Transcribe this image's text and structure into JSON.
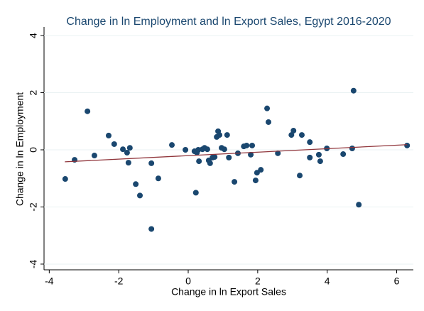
{
  "chart_data": {
    "type": "scatter",
    "title": "Change in ln Employment and ln Export Sales, Egypt 2016-2020",
    "x_label": "Change in ln Export Sales",
    "y_label": "Change in ln Employment",
    "xlim": [
      -4.15,
      6.48
    ],
    "ylim": [
      -4.2,
      4.3
    ],
    "xticks": [
      -4,
      -2,
      0,
      2,
      4,
      6
    ],
    "yticks": [
      -4,
      -2,
      0,
      2,
      4
    ],
    "grid": true,
    "series": [
      {
        "color": "#1a476f",
        "x": [
          -3.54,
          -3.27,
          -2.9,
          -2.7,
          -2.29,
          -2.13,
          -1.88,
          -1.76,
          -1.68,
          -1.72,
          -1.51,
          -1.39,
          -1.06,
          -1.06,
          -0.86,
          -0.47,
          -0.08,
          0.18,
          0.25,
          0.29,
          0.22,
          0.31,
          0.41,
          0.47,
          0.55,
          0.59,
          0.63,
          0.7,
          0.76,
          0.82,
          0.86,
          0.9,
          0.96,
          1.04,
          1.12,
          1.17,
          1.33,
          1.43,
          1.6,
          1.68,
          1.8,
          1.84,
          1.94,
          1.98,
          2.09,
          2.27,
          2.31,
          2.58,
          2.97,
          3.03,
          3.21,
          3.27,
          3.5,
          3.5,
          3.76,
          3.8,
          3.99,
          4.46,
          4.72,
          4.76,
          4.91,
          6.3
        ],
        "values": [
          -1.02,
          -0.35,
          1.35,
          -0.2,
          0.5,
          0.2,
          0.02,
          -0.1,
          0.07,
          -0.45,
          -1.2,
          -1.6,
          -0.47,
          -2.77,
          -1.0,
          0.17,
          0.0,
          -0.05,
          -0.1,
          0.0,
          -1.5,
          -0.4,
          0.02,
          0.07,
          0.02,
          -0.37,
          -0.47,
          -0.27,
          -0.25,
          0.45,
          0.65,
          0.52,
          0.07,
          0.02,
          0.52,
          -0.27,
          -1.12,
          -0.12,
          0.12,
          0.15,
          -0.17,
          0.15,
          -1.07,
          -0.8,
          -0.7,
          1.45,
          0.97,
          -0.12,
          0.52,
          0.67,
          -0.9,
          0.52,
          0.27,
          -0.27,
          -0.17,
          -0.4,
          0.05,
          -0.15,
          0.05,
          2.07,
          -1.92,
          0.15
        ]
      }
    ],
    "fit_line": {
      "color": "#90353b",
      "x": [
        -3.55,
        6.3
      ],
      "values": [
        -0.42,
        0.18
      ]
    }
  }
}
